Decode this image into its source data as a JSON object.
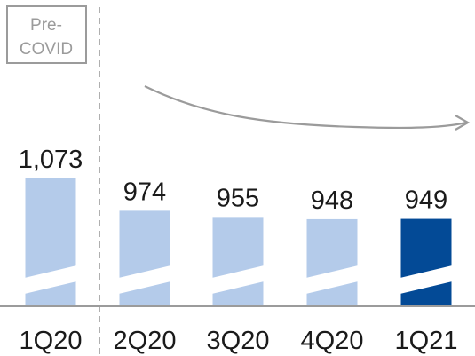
{
  "chart_data": {
    "type": "bar",
    "categories": [
      "1Q20",
      "2Q20",
      "3Q20",
      "4Q20",
      "1Q21"
    ],
    "values": [
      1073,
      974,
      955,
      948,
      949
    ],
    "value_labels": [
      "1,073",
      "974",
      "955",
      "948",
      "949"
    ],
    "highlight_index": 4,
    "axis_break": true,
    "annotation": {
      "text_line1": "Pre-",
      "text_line2": "COVID",
      "divider_after_index": 0
    },
    "trend_arrow": true,
    "colors": {
      "bar": "#b4cbea",
      "bar_highlight": "#034a96",
      "break": "#ffffff",
      "divider": "#9b9b9b",
      "arrow": "#9b9b9b",
      "baseline": "#9b9b9b",
      "label_box": "#9b9b9b"
    }
  }
}
